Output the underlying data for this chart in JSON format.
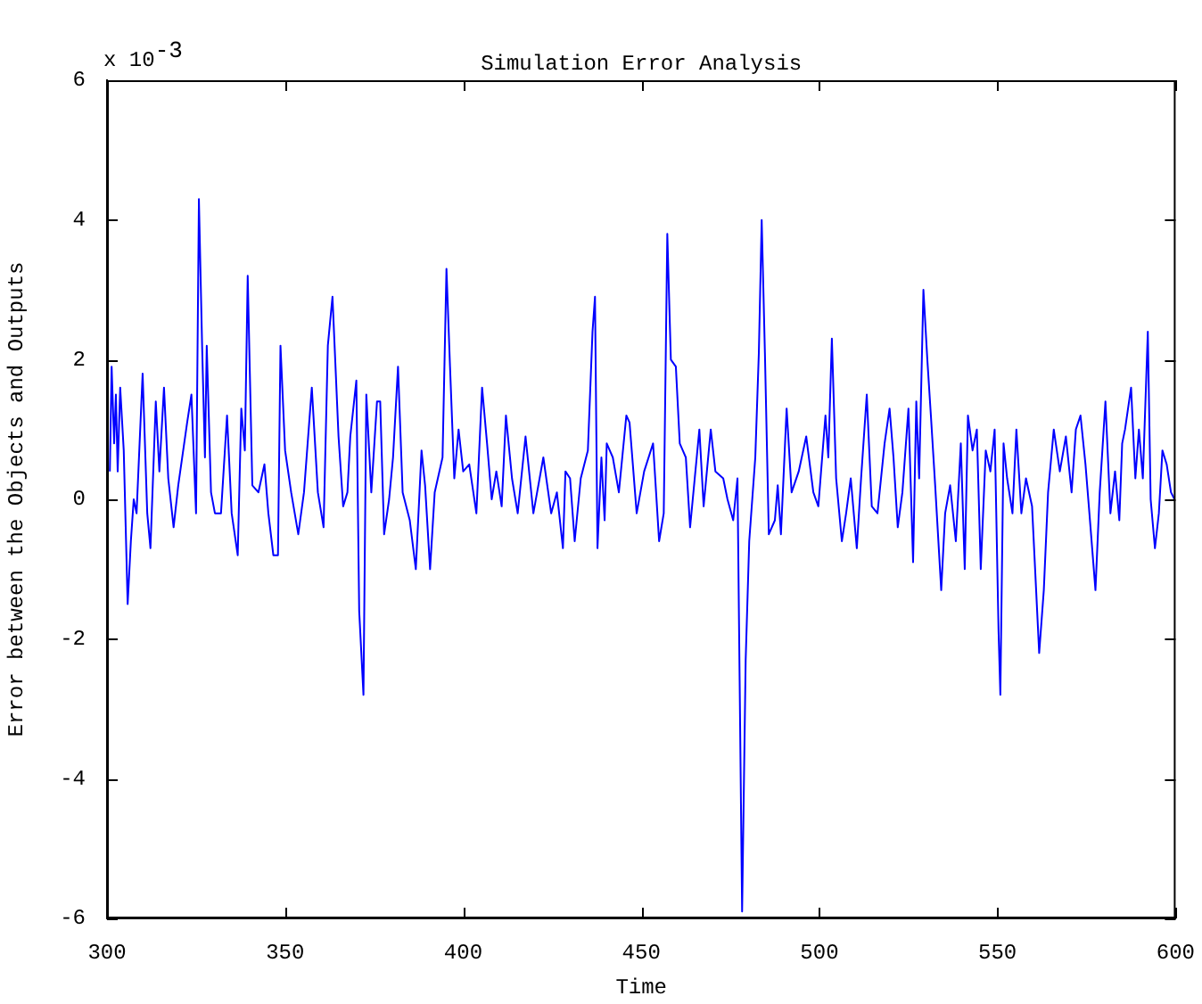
{
  "chart_data": {
    "type": "line",
    "title": "Simulation Error Analysis",
    "xlabel": "Time",
    "ylabel": "Error between the Objects and Outputs",
    "annotations": [
      "x 10$^{-3}$"
    ],
    "xlim": [
      300,
      600
    ],
    "xticks": [
      300,
      350,
      400,
      450,
      500,
      550,
      600
    ],
    "ylim": [
      -6,
      6
    ],
    "yticks": [
      -6,
      -4,
      -2,
      0,
      2,
      4,
      6
    ],
    "grid": false,
    "legend": false,
    "marker": "none",
    "line_style": "solid",
    "series": [
      {
        "color": "#0000ff",
        "x": [
          300.8,
          301.3,
          302,
          302.5,
          303,
          303.7,
          304.7,
          305.8,
          306.7,
          307.5,
          308.3,
          310,
          311.3,
          312.2,
          313.7,
          314.7,
          316,
          317.2,
          318.7,
          320,
          322.5,
          323.7,
          325,
          325.8,
          326.7,
          327.5,
          328,
          329.2,
          330.3,
          332,
          333.7,
          335,
          336.7,
          337.7,
          338.7,
          339.5,
          340.8,
          342.5,
          344.2,
          345.3,
          346.7,
          348,
          348.7,
          350,
          351.7,
          353.7,
          355.3,
          357.5,
          359.2,
          360.8,
          362,
          363.3,
          365,
          366.3,
          367.5,
          368.3,
          370,
          370.8,
          372,
          372.8,
          374.2,
          375.8,
          376.7,
          377.8,
          379.2,
          380.3,
          381.7,
          383,
          385,
          386.7,
          388.3,
          389.3,
          390.7,
          392,
          394.2,
          395.3,
          396.3,
          397.5,
          398.7,
          400,
          401.7,
          403.7,
          405.3,
          406.7,
          408,
          409.3,
          410.8,
          412,
          413.7,
          415.3,
          417.5,
          419.7,
          422.5,
          424.7,
          426.3,
          428,
          428.7,
          430,
          431.3,
          433,
          435,
          436.3,
          437,
          437.7,
          438.8,
          439.7,
          440.3,
          442,
          443.7,
          445.8,
          446.7,
          448.7,
          450.8,
          453.3,
          455,
          456.3,
          457.3,
          458.3,
          459.7,
          460.8,
          462.5,
          463.7,
          465,
          466.3,
          467.5,
          469.5,
          470.8,
          473,
          474.2,
          475.8,
          477,
          478.3,
          479.3,
          480.3,
          482,
          483,
          483.8,
          484.7,
          485.8,
          487.5,
          488.3,
          489.2,
          490.8,
          492.2,
          494.2,
          496.3,
          498.3,
          499.7,
          501.7,
          502.5,
          503.5,
          504.7,
          506.3,
          507.5,
          508.8,
          510.5,
          511.7,
          513.3,
          514.7,
          516.3,
          518.3,
          519.7,
          520.8,
          522,
          523.3,
          525,
          526.3,
          527.2,
          528,
          529.2,
          530.3,
          531.3,
          532.5,
          534.2,
          535.3,
          536.7,
          538.3,
          539.7,
          540.8,
          541.7,
          543,
          544.2,
          545.3,
          546.7,
          548,
          549.2,
          550.3,
          550.8,
          551.7,
          552.7,
          554.2,
          555.3,
          556.7,
          558,
          559.7,
          561.7,
          563,
          564.2,
          565.8,
          567.5,
          569.2,
          570.8,
          572,
          573.3,
          574.7,
          575.8,
          577.5,
          578.7,
          580.3,
          581.7,
          583,
          584.2,
          585,
          585.8,
          587.5,
          588.7,
          589.7,
          590.8,
          592.2,
          593,
          594.2,
          595.3,
          596.3,
          597.5,
          598.7,
          599.7
        ],
        "values": [
          0.4,
          1.9,
          0.8,
          1.5,
          0.4,
          1.6,
          0.7,
          -1.5,
          -0.6,
          0,
          -0.2,
          1.8,
          -0.2,
          -0.7,
          1.4,
          0.4,
          1.6,
          0.3,
          -0.4,
          0.2,
          1.1,
          1.5,
          -0.2,
          4.3,
          2.2,
          0.6,
          2.2,
          0.1,
          -0.2,
          -0.2,
          1.2,
          -0.2,
          -0.8,
          1.3,
          0.7,
          3.2,
          0.2,
          0.1,
          0.5,
          -0.2,
          -0.8,
          -0.8,
          2.2,
          0.7,
          0.1,
          -0.5,
          0.1,
          1.6,
          0.1,
          -0.4,
          2.2,
          2.9,
          0.9,
          -0.1,
          0.1,
          0.9,
          1.7,
          -1.6,
          -2.8,
          1.5,
          0.1,
          1.4,
          1.4,
          -0.5,
          0,
          0.6,
          1.9,
          0.1,
          -0.3,
          -1,
          0.7,
          0.2,
          -1,
          0.1,
          0.6,
          3.3,
          1.9,
          0.3,
          1,
          0.4,
          0.5,
          -0.2,
          1.6,
          0.8,
          0,
          0.4,
          -0.1,
          1.2,
          0.3,
          -0.2,
          0.9,
          -0.2,
          0.6,
          -0.2,
          0.1,
          -0.7,
          0.4,
          0.3,
          -0.6,
          0.3,
          0.7,
          2.4,
          2.9,
          -0.7,
          0.6,
          -0.3,
          0.8,
          0.6,
          0.1,
          1.2,
          1.1,
          -0.2,
          0.4,
          0.8,
          -0.6,
          -0.2,
          3.8,
          2,
          1.9,
          0.8,
          0.6,
          -0.4,
          0.3,
          1,
          -0.1,
          1,
          0.4,
          0.3,
          0,
          -0.3,
          0.3,
          -5.9,
          -2.3,
          -0.6,
          0.6,
          2.1,
          4,
          2.1,
          -0.5,
          -0.3,
          0.2,
          -0.5,
          1.3,
          0.1,
          0.4,
          0.9,
          0.1,
          -0.1,
          1.2,
          0.6,
          2.3,
          0.3,
          -0.6,
          -0.2,
          0.3,
          -0.7,
          0.3,
          1.5,
          -0.1,
          -0.2,
          0.8,
          1.3,
          0.6,
          -0.4,
          0.1,
          1.3,
          -0.9,
          1.4,
          0.3,
          3,
          2,
          1.2,
          0.2,
          -1.3,
          -0.2,
          0.2,
          -0.6,
          0.8,
          -1,
          1.2,
          0.7,
          1,
          -1,
          0.7,
          0.4,
          1,
          -1.9,
          -2.8,
          0.8,
          0.3,
          -0.2,
          1,
          -0.2,
          0.3,
          -0.1,
          -2.2,
          -1.3,
          0.1,
          1,
          0.4,
          0.9,
          0.1,
          1,
          1.2,
          0.5,
          -0.2,
          -1.3,
          0.1,
          1.4,
          -0.2,
          0.4,
          -0.3,
          0.8,
          1,
          1.6,
          0.3,
          1,
          0.3,
          2.4,
          0,
          -0.7,
          -0.2,
          0.7,
          0.5,
          0.1,
          0
        ]
      }
    ]
  }
}
